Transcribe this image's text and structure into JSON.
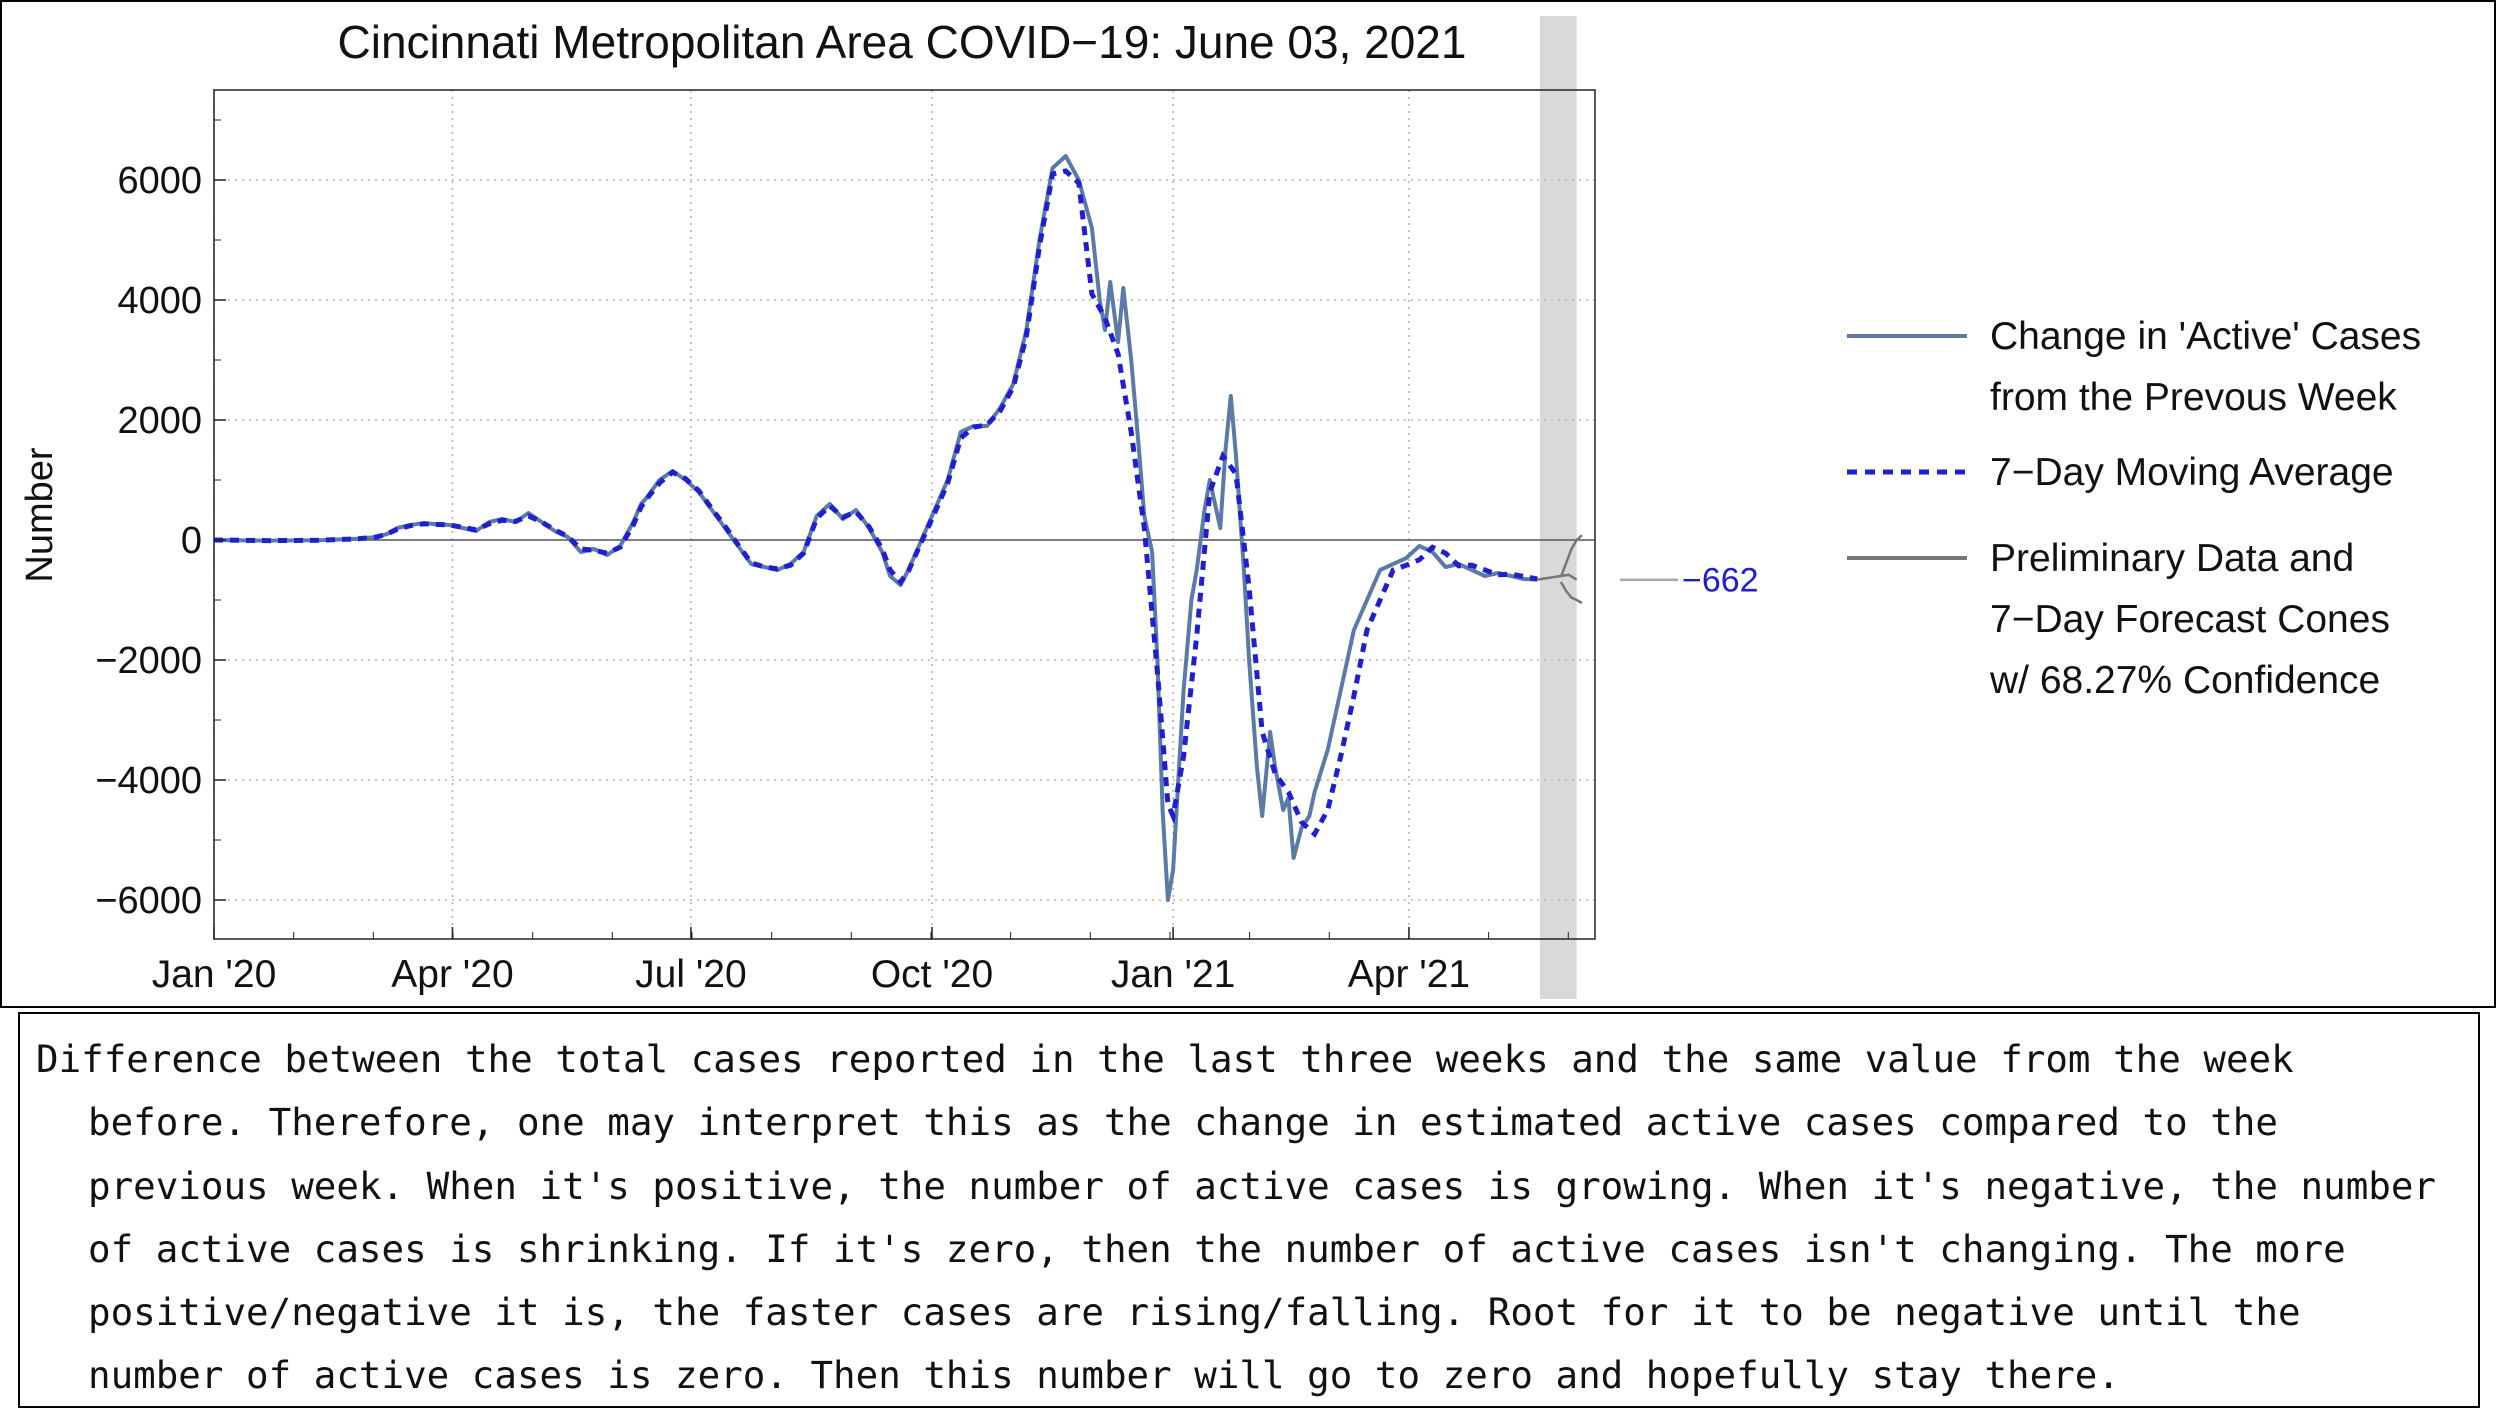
{
  "chart_data": {
    "type": "line",
    "title": "Cincinnati Metropolitan Area COVID−19: June 03, 2021",
    "xlabel": "",
    "ylabel": "Number",
    "x_ticks": [
      "Jan '20",
      "Apr '20",
      "Jul '20",
      "Oct '20",
      "Jan '21",
      "Apr '21"
    ],
    "x_tick_days": [
      0,
      91,
      182,
      274,
      366,
      456
    ],
    "y_ticks": [
      6000,
      4000,
      2000,
      0,
      -2000,
      -4000,
      -6000
    ],
    "y_tick_labels": [
      "6000",
      "4000",
      "2000",
      "0",
      "−2000",
      "−4000",
      "−6000"
    ],
    "xlim_days": [
      0,
      527
    ],
    "ylim": [
      -6650,
      7500
    ],
    "x_unit": "days since Jan 1, 2020",
    "preliminary_band_days": [
      506,
      520
    ],
    "grid": true,
    "legend_position": "right",
    "series": [
      {
        "name": "Change in 'Active' Cases from the Prevous Week",
        "legend_lines": [
          "Change in 'Active' Cases",
          "from the Prevous Week"
        ],
        "color": "#5b7aa8",
        "style": "solid",
        "x": [
          0,
          20,
          40,
          55,
          62,
          66,
          70,
          75,
          80,
          90,
          95,
          100,
          105,
          110,
          115,
          120,
          125,
          130,
          135,
          140,
          145,
          150,
          155,
          160,
          163,
          165,
          170,
          175,
          180,
          185,
          190,
          195,
          200,
          205,
          210,
          215,
          220,
          225,
          230,
          235,
          240,
          245,
          250,
          255,
          258,
          262,
          265,
          270,
          275,
          280,
          285,
          290,
          295,
          300,
          305,
          310,
          315,
          320,
          325,
          330,
          335,
          338,
          340,
          342,
          345,
          347,
          350,
          353,
          355,
          358,
          360,
          362,
          364,
          366,
          368,
          370,
          373,
          375,
          378,
          380,
          382,
          384,
          386,
          388,
          390,
          393,
          395,
          398,
          400,
          403,
          405,
          408,
          410,
          412,
          415,
          418,
          420,
          425,
          430,
          435,
          440,
          445,
          450,
          455,
          460,
          465,
          470,
          475,
          480,
          485,
          490,
          495,
          500,
          505
        ],
        "y": [
          0,
          -10,
          -5,
          20,
          50,
          100,
          200,
          250,
          280,
          250,
          200,
          150,
          300,
          350,
          300,
          450,
          300,
          150,
          50,
          -200,
          -150,
          -250,
          -100,
          300,
          600,
          700,
          1000,
          1150,
          1000,
          800,
          500,
          200,
          -100,
          -400,
          -450,
          -500,
          -400,
          -200,
          400,
          600,
          350,
          500,
          200,
          -200,
          -600,
          -750,
          -500,
          0,
          500,
          1000,
          1800,
          1900,
          1900,
          2200,
          2600,
          3500,
          5000,
          6200,
          6400,
          6000,
          5200,
          4000,
          3500,
          4300,
          3300,
          4200,
          3000,
          1500,
          400,
          -200,
          -2000,
          -4500,
          -6000,
          -5500,
          -4000,
          -2500,
          -1000,
          -500,
          500,
          1000,
          600,
          200,
          1500,
          2400,
          1400,
          -500,
          -2000,
          -3800,
          -4600,
          -3200,
          -3800,
          -4500,
          -4300,
          -5300,
          -4800,
          -4600,
          -4200,
          -3500,
          -2500,
          -1500,
          -1000,
          -500,
          -400,
          -300,
          -100,
          -200,
          -450,
          -400,
          -500,
          -600,
          -550,
          -600,
          -650,
          -660
        ],
        "end_label": "−662",
        "end_value": -662
      },
      {
        "name": "7−Day Moving Average",
        "legend_lines": [
          "7−Day Moving Average"
        ],
        "color": "#1f1fd1",
        "style": "dashed",
        "x": [
          0,
          20,
          40,
          55,
          62,
          66,
          70,
          75,
          80,
          90,
          95,
          100,
          105,
          110,
          115,
          120,
          125,
          130,
          135,
          140,
          145,
          150,
          155,
          160,
          163,
          165,
          170,
          175,
          180,
          185,
          190,
          195,
          200,
          205,
          210,
          215,
          220,
          225,
          230,
          235,
          240,
          245,
          250,
          255,
          258,
          262,
          265,
          270,
          275,
          280,
          285,
          290,
          295,
          300,
          305,
          310,
          315,
          320,
          325,
          330,
          335,
          340,
          345,
          350,
          355,
          360,
          364,
          366,
          370,
          375,
          380,
          385,
          390,
          395,
          400,
          405,
          410,
          415,
          420,
          425,
          430,
          435,
          440,
          445,
          450,
          455,
          460,
          465,
          470,
          475,
          480,
          485,
          490,
          495,
          500,
          505
        ],
        "y": [
          0,
          -10,
          -5,
          20,
          50,
          100,
          180,
          240,
          270,
          250,
          210,
          170,
          270,
          330,
          310,
          400,
          300,
          170,
          60,
          -150,
          -170,
          -220,
          -120,
          250,
          550,
          680,
          950,
          1130,
          1020,
          820,
          520,
          230,
          -80,
          -380,
          -450,
          -480,
          -420,
          -220,
          360,
          570,
          380,
          470,
          220,
          -150,
          -500,
          -700,
          -520,
          -30,
          450,
          950,
          1700,
          1880,
          1920,
          2150,
          2550,
          3400,
          4900,
          6100,
          6150,
          5950,
          4100,
          3700,
          3100,
          1800,
          200,
          -2200,
          -4400,
          -4600,
          -3600,
          -1600,
          800,
          1400,
          1100,
          -800,
          -3200,
          -3900,
          -4200,
          -4700,
          -4900,
          -4500,
          -3600,
          -2600,
          -1500,
          -1000,
          -500,
          -420,
          -330,
          -120,
          -220,
          -430,
          -420,
          -500,
          -580,
          -570,
          -610,
          -650
        ],
        "end_label": "−662",
        "end_value": -662
      },
      {
        "name": "Preliminary Data and 7−Day Forecast Cones w/ 68.27% Confidence",
        "legend_lines": [
          "Preliminary Data and",
          "7−Day Forecast Cones",
          "w/ 68.27% Confidence"
        ],
        "color": "#777777",
        "style": "solid",
        "x": [
          505,
          508,
          511,
          514,
          517,
          520
        ],
        "y": [
          -660,
          -640,
          -620,
          -600,
          -580,
          -662
        ],
        "cone_upper": {
          "x": [
            514,
            516,
            518,
            520,
            522
          ],
          "y": [
            -620,
            -380,
            -150,
            0,
            80
          ]
        },
        "cone_lower": {
          "x": [
            514,
            516,
            518,
            520,
            522
          ],
          "y": [
            -700,
            -850,
            -960,
            -1000,
            -1050
          ]
        }
      }
    ],
    "annotations": [
      {
        "text": "−662",
        "x_day": 535,
        "y": -662,
        "color": "#1f1fd1"
      }
    ]
  },
  "caption": "Difference between the total cases reported in the last three weeks and the same value from the week before. Therefore, one may interpret this as the change in estimated active cases compared to the previous week. When it's positive, the number of active cases is growing. When it's negative, the number of active cases is shrinking. If it's zero, then the number of active cases isn't changing. The more positive/negative it is, the faster cases are rising/falling. Root for it to be negative until the number of active cases is zero. Then this number will go to zero and hopefully stay there.",
  "colors": {
    "frame": "#000000",
    "grid": "#b5b5b5",
    "band": "#d9d9d9",
    "zero_line": "#555555"
  }
}
